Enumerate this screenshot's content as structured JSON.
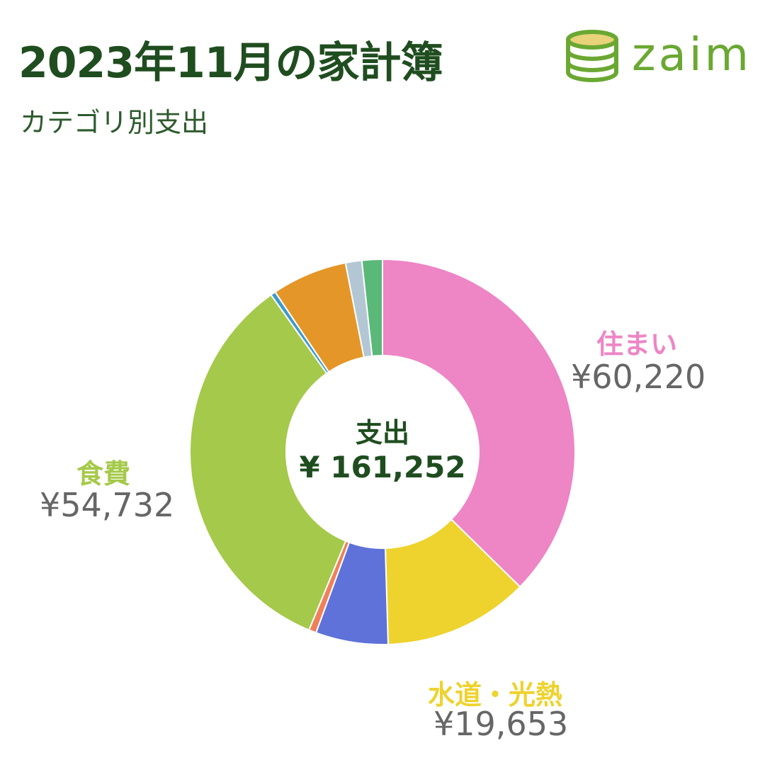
{
  "header": {
    "title": "2023年11月の家計簿",
    "subtitle": "カテゴリ別支出"
  },
  "logo": {
    "text": "zaim",
    "icon": "coin-stack-icon",
    "color": "#6aa832"
  },
  "center": {
    "label": "支出",
    "total": "¥ 161,252"
  },
  "labels": {
    "housing": {
      "name": "住まい",
      "value": "¥60,220",
      "color": "#ee85c5"
    },
    "food": {
      "name": "食費",
      "value": "¥54,732",
      "color": "#a5c94a"
    },
    "utilities": {
      "name": "水道・光熱",
      "value": "¥19,653",
      "color": "#eed22e"
    }
  },
  "chart_data": {
    "type": "pie",
    "title": "2023年11月の家計簿",
    "subtitle": "カテゴリ別支出",
    "total": 161252,
    "slices": [
      {
        "name": "住まい",
        "value": 60220,
        "color": "#ee85c5"
      },
      {
        "name": "水道・光熱",
        "value": 19653,
        "color": "#eed22e"
      },
      {
        "name": "",
        "value": 9800,
        "color": "#5f72d9"
      },
      {
        "name": "",
        "value": 1000,
        "color": "#f0805a"
      },
      {
        "name": "食費",
        "value": 54732,
        "color": "#a5c94a"
      },
      {
        "name": "",
        "value": 680,
        "color": "#3d9bc7"
      },
      {
        "name": "",
        "value": 10200,
        "color": "#e59628"
      },
      {
        "name": "",
        "value": 2200,
        "color": "#b3c6d4"
      },
      {
        "name": "",
        "value": 2767,
        "color": "#5ab879"
      }
    ]
  }
}
